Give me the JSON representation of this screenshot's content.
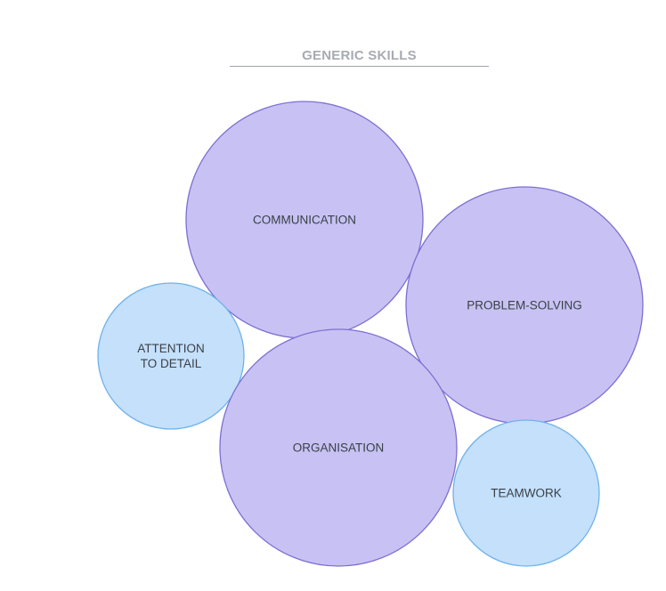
{
  "diagram": {
    "title": "GENERIC SKILLS",
    "colors": {
      "primary_fill": "#c7c2f3",
      "primary_stroke": "#7d6fd3",
      "secondary_fill": "#c4e0fb",
      "secondary_stroke": "#6fb2ea",
      "title_color": "#a7abb2",
      "label_color": "#3a3f46"
    },
    "bubbles": [
      {
        "id": "communication",
        "lines": [
          "COMMUNICATION"
        ],
        "kind": "primary"
      },
      {
        "id": "problem-solving",
        "lines": [
          "PROBLEM-SOLVING"
        ],
        "kind": "primary"
      },
      {
        "id": "attention-to-detail",
        "lines": [
          "ATTENTION",
          "TO DETAIL"
        ],
        "kind": "secondary"
      },
      {
        "id": "organisation",
        "lines": [
          "ORGANISATION"
        ],
        "kind": "primary"
      },
      {
        "id": "teamwork",
        "lines": [
          "TEAMWORK"
        ],
        "kind": "secondary"
      }
    ]
  }
}
